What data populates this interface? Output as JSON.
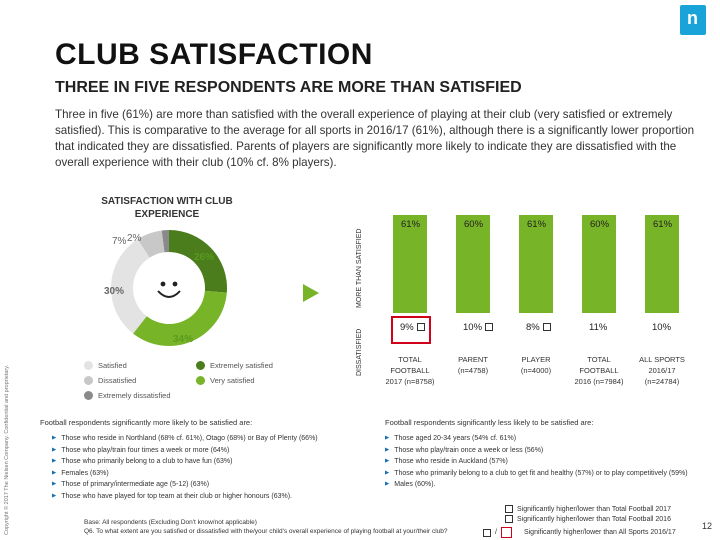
{
  "logo": {
    "glyph": "n"
  },
  "title": "CLUB SATISFACTION",
  "subtitle": "THREE IN FIVE RESPONDENTS ARE MORE THAN SATISFIED",
  "paragraph": "Three in five (61%) are more than satisfied with the overall experience of playing at their club (very satisfied or extremely satisfied). This is comparative to the average for all sports in 2016/17 (61%), although there is a significantly lower proportion that indicated they are dissatisfied. Parents of players are significantly more likely to indicate they are dissatisfied with the overall experience with their club (10% cf. 8% players).",
  "copyright": "Copyright © 2017 The Nielsen Company. Confidential and proprietary.",
  "donut": {
    "title": "SATISFACTION WITH CLUB EXPERIENCE",
    "labels": {
      "extremely_dissatisfied": "2%",
      "dissatisfied": "7%",
      "extremely_satisfied": "26%",
      "satisfied": "30%",
      "very_satisfied": "34%"
    },
    "colors": {
      "extremely_dissatisfied": "#8a8a8a",
      "dissatisfied": "#c8c8c8",
      "satisfied": "#e3e3e3",
      "extremely_satisfied": "#4b7d1c",
      "very_satisfied": "#78b428",
      "text_green": "#5a9a1e"
    }
  },
  "legend": {
    "satisfied": "Satisfied",
    "extremely_satisfied": "Extremely satisfied",
    "dissatisfied": "Dissatisfied",
    "very_satisfied": "Very satisfied",
    "extremely_dissatisfied": "Extremely dissatisfied"
  },
  "axis": {
    "more_than_satisfied": "MORE THAN SATISFIED",
    "dissatisfied": "DISSATISFIED"
  },
  "columns": [
    {
      "top": "61%",
      "bottom": "9%",
      "label": "TOTAL FOOTBALL 2017 (n=8758)",
      "flag": "black",
      "highlight": true
    },
    {
      "top": "60%",
      "bottom": "10%",
      "label": "PARENT (n=4758)",
      "flag": "black",
      "highlight": false
    },
    {
      "top": "61%",
      "bottom": "8%",
      "label": "PLAYER (n=4000)",
      "flag": "black",
      "highlight": false
    },
    {
      "top": "60%",
      "bottom": "11%",
      "label": "TOTAL FOOTBALL 2016 (n=7984)",
      "flag": "",
      "highlight": false
    },
    {
      "top": "61%",
      "bottom": "10%",
      "label": "ALL SPORTS 2016/17 (n=24784)",
      "flag": "",
      "highlight": false
    }
  ],
  "notes_left": {
    "heading": "Football respondents significantly more likely to be satisfied are:",
    "items": [
      "Those who reside in Northland (68% cf. 61%), Otago (68%) or Bay of Plenty (66%)",
      "Those who play/train four times a week or more (64%)",
      "Those who primarily belong to a club to have fun (63%)",
      "Females (63%)",
      "Those of primary/intermediate age (5-12) (63%)",
      "Those who have played for top team at their club or higher honours (63%)."
    ]
  },
  "notes_right": {
    "heading": "Football respondents significantly less likely to be satisfied are:",
    "items": [
      "Those aged 20-34 years (54% cf. 61%)",
      "Those who play/train once a week or less (56%)",
      "Those who reside in Auckland (57%)",
      "Those who primarily belong to a club to get fit and healthy (57%) or to play competitively (59%)",
      "Males (60%)."
    ]
  },
  "footnote": {
    "base": "Base: All respondents (Excluding Don't know/not applicable)",
    "question": "Q6. To what extent are you satisfied or dissatisfied with the/your child's overall experience of playing football at your/their club?"
  },
  "key": {
    "line1": "Significantly higher/lower than Total Football 2017",
    "line2": "Significantly higher/lower than Total Football 2016",
    "line3": "Significantly higher/lower than All Sports 2016/17"
  },
  "page_number": "12"
}
